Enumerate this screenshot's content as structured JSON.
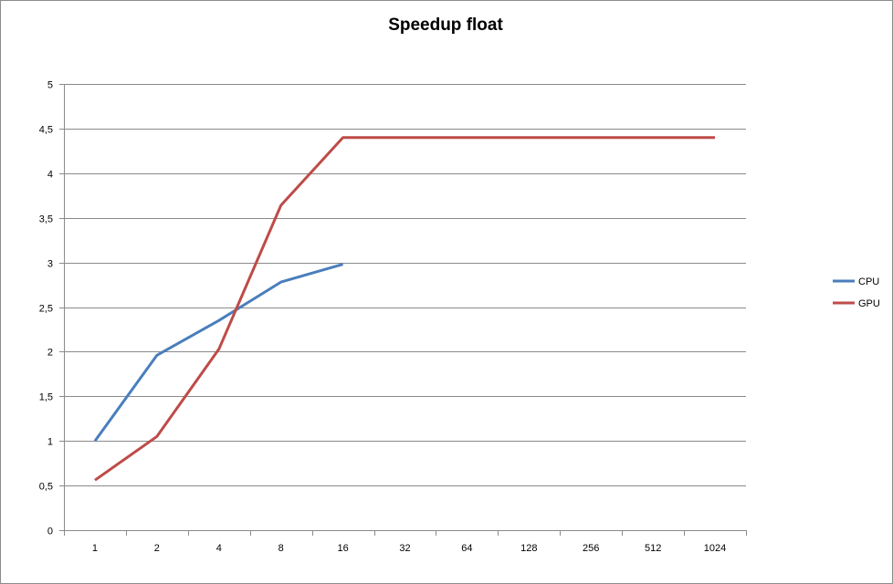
{
  "chart_data": {
    "type": "line",
    "title": "Speedup float",
    "xlabel": "",
    "ylabel": "",
    "categories": [
      "1",
      "2",
      "4",
      "8",
      "16",
      "32",
      "64",
      "128",
      "256",
      "512",
      "1024"
    ],
    "ylim": [
      0,
      5
    ],
    "yticks": [
      "0",
      "0,5",
      "1",
      "1,5",
      "2",
      "2,5",
      "3",
      "3,5",
      "4",
      "4,5",
      "5"
    ],
    "grid": "horizontal",
    "legend_position": "right",
    "series": [
      {
        "name": "CPU",
        "color": "#4a7ebb",
        "values": [
          1.0,
          1.96,
          2.35,
          2.78,
          2.98,
          null,
          null,
          null,
          null,
          null,
          null
        ]
      },
      {
        "name": "GPU",
        "color": "#be4b48",
        "values": [
          0.56,
          1.05,
          2.03,
          3.64,
          4.4,
          4.4,
          4.4,
          4.4,
          4.4,
          4.4,
          4.4
        ]
      }
    ]
  }
}
